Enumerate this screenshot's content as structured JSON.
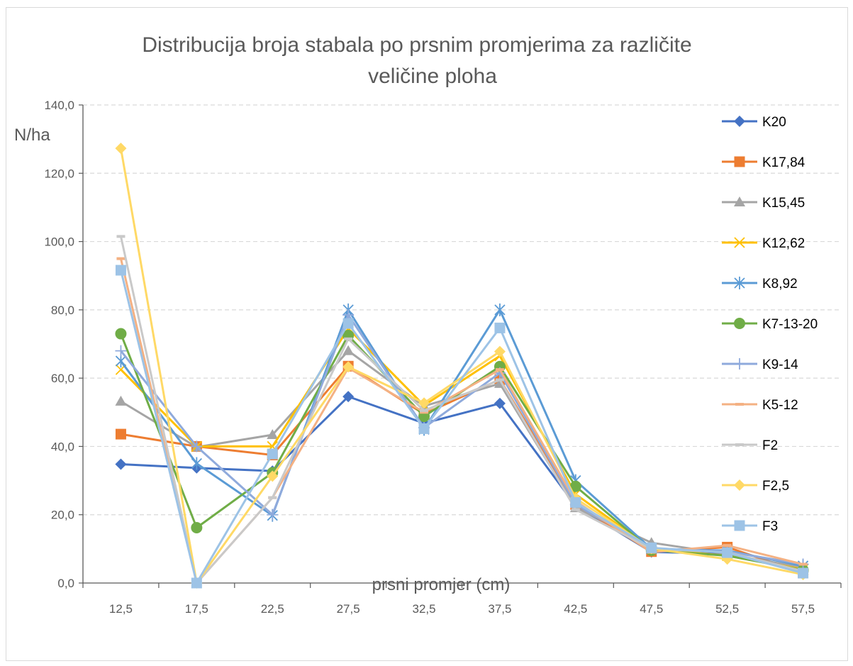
{
  "chart_data": {
    "type": "line",
    "title_lines": [
      "Distribucija broja stabala po prsnim promjerima za različite",
      "veličine ploha"
    ],
    "xlabel": "prsni promjer (cm)",
    "ylabel": "N/ha",
    "categories": [
      "12,5",
      "17,5",
      "22,5",
      "27,5",
      "32,5",
      "37,5",
      "42,5",
      "47,5",
      "52,5",
      "57,5"
    ],
    "ylim": [
      0,
      140
    ],
    "yticks": [
      "0,0",
      "20,0",
      "40,0",
      "60,0",
      "80,0",
      "100,0",
      "120,0",
      "140,0"
    ],
    "grid": "horizontal-dashed",
    "legend_position": "right",
    "series": [
      {
        "name": "K20",
        "color": "#4472C4",
        "marker": "diamond",
        "values": [
          34.8,
          33.7,
          32.8,
          54.6,
          46.8,
          52.6,
          22.6,
          9.1,
          8.6,
          3.2
        ]
      },
      {
        "name": "K17,84",
        "color": "#ED7D31",
        "marker": "square",
        "values": [
          43.6,
          40.0,
          37.5,
          63.5,
          49.5,
          59.6,
          23.0,
          9.2,
          10.5,
          3.0
        ]
      },
      {
        "name": "K15,45",
        "color": "#A5A5A5",
        "marker": "triangle",
        "values": [
          53.2,
          39.8,
          43.4,
          68.0,
          51.8,
          58.4,
          22.0,
          11.8,
          8.5,
          4.5
        ]
      },
      {
        "name": "K12,62",
        "color": "#FFC000",
        "marker": "x",
        "values": [
          62.5,
          40.0,
          40.0,
          74.5,
          52.0,
          66.5,
          26.0,
          10.0,
          8.0,
          4.0
        ]
      },
      {
        "name": "K8,92",
        "color": "#5B9BD5",
        "marker": "star",
        "values": [
          65.0,
          35.0,
          19.8,
          80.0,
          45.0,
          80.0,
          30.0,
          10.0,
          9.5,
          5.0
        ]
      },
      {
        "name": "K7-13-20",
        "color": "#70AD47",
        "marker": "circle",
        "values": [
          73.0,
          16.2,
          32.3,
          72.5,
          48.8,
          63.4,
          28.3,
          9.6,
          8.0,
          3.8
        ]
      },
      {
        "name": "K9-14",
        "color": "#8FAADC",
        "marker": "plus",
        "values": [
          68.0,
          40.0,
          20.0,
          78.5,
          45.5,
          61.5,
          23.0,
          10.2,
          9.2,
          5.5
        ]
      },
      {
        "name": "K5-12",
        "color": "#F4B183",
        "marker": "dash",
        "values": [
          95.0,
          0.0,
          25.0,
          63.0,
          50.0,
          62.5,
          24.0,
          9.0,
          11.0,
          5.5
        ]
      },
      {
        "name": "F2",
        "color": "#C9C9C9",
        "marker": "dash",
        "values": [
          101.5,
          0.0,
          25.0,
          71.5,
          50.5,
          59.5,
          21.5,
          10.0,
          9.0,
          3.5
        ]
      },
      {
        "name": "F2,5",
        "color": "#FFD966",
        "marker": "diamond",
        "values": [
          127.3,
          0.0,
          31.3,
          63.3,
          52.7,
          67.8,
          24.8,
          10.1,
          7.0,
          2.5
        ]
      },
      {
        "name": "F3",
        "color": "#9DC3E6",
        "marker": "square",
        "values": [
          91.6,
          0.0,
          37.8,
          76.0,
          45.2,
          74.7,
          23.6,
          10.3,
          8.9,
          2.9
        ]
      }
    ]
  }
}
